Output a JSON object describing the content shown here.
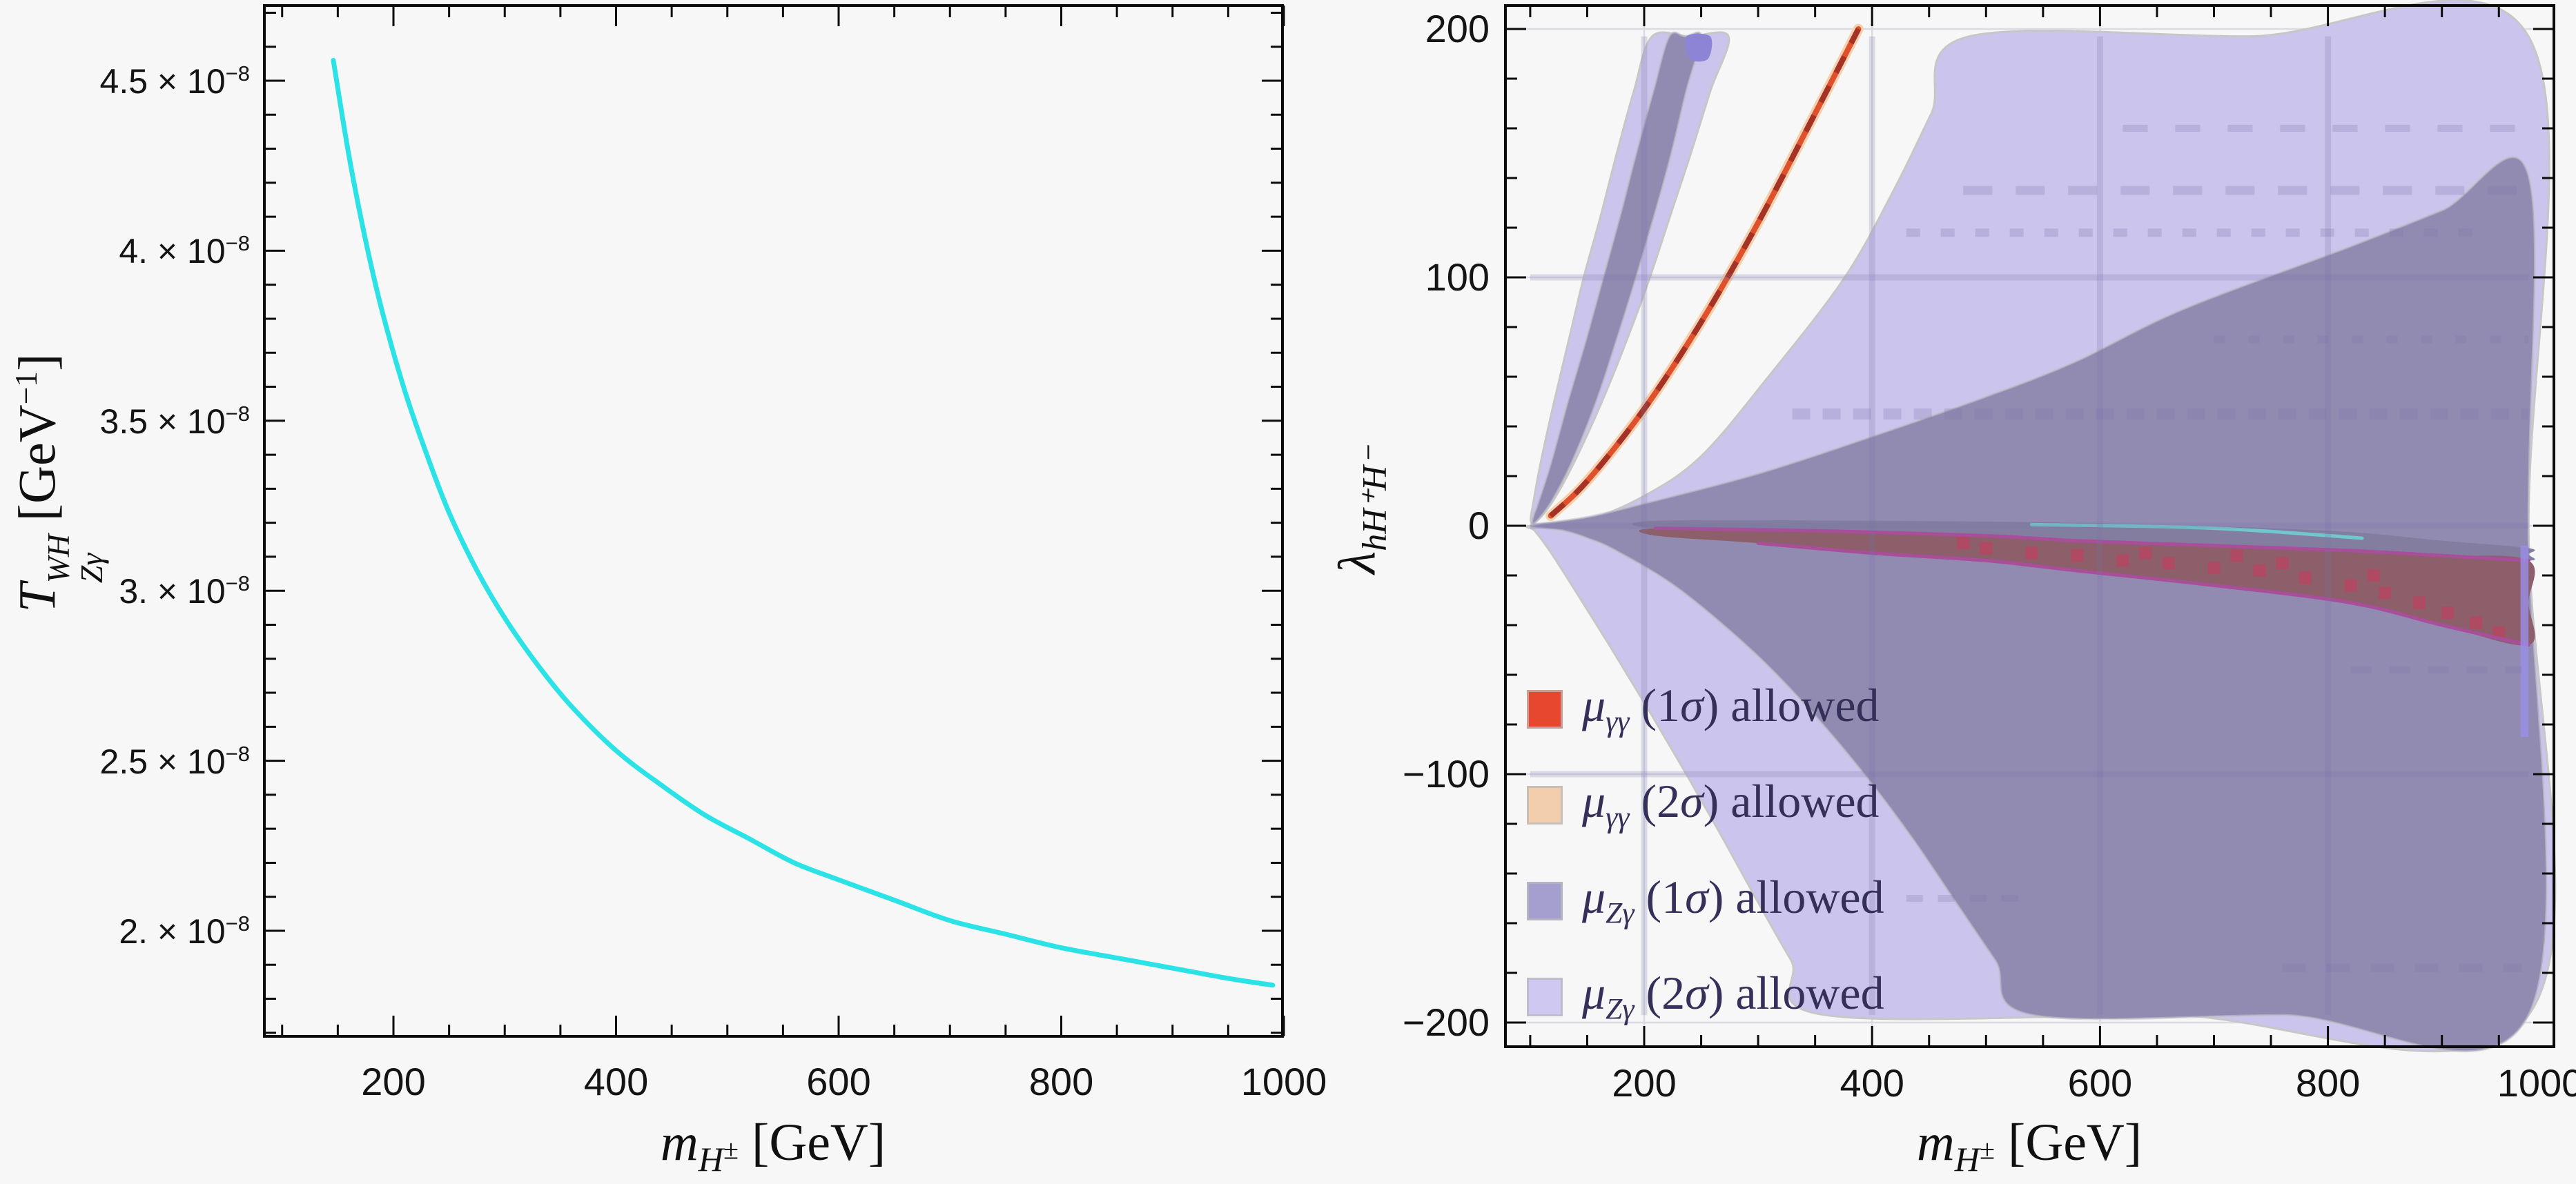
{
  "figure": {
    "background": "#f7f7f8",
    "frame_color": "#0b0b0b",
    "tick_text_color": "#141414",
    "legend_text_color": "#34305a"
  },
  "labels": {
    "x": {
      "base": "m",
      "sub_main": "H",
      "sub_sup": "±",
      "unit": "[GeV]"
    },
    "left_y": {
      "base": "T",
      "sup": "WH",
      "sub": "Zγ",
      "unit_pre": "[GeV",
      "unit_exp": "−1",
      "unit_post": "]"
    },
    "right_y": {
      "base": "λ",
      "sub": "hH⁺H⁻"
    }
  },
  "chart_data": [
    {
      "type": "line",
      "title": "",
      "xlabel": "m_H± [GeV]",
      "ylabel": "T^WH_Zγ [GeV^-1]",
      "x_ticks": [
        200,
        400,
        600,
        800,
        1000
      ],
      "x_tick_labels": [
        "200",
        "400",
        "600",
        "800",
        "1000"
      ],
      "x_minor_step": 50,
      "xlim": [
        84,
        1000
      ],
      "y_units": "1e-8 GeV^-1",
      "ylim": [
        1.69,
        4.72
      ],
      "y_major_ticks": [
        2.0,
        2.5,
        3.0,
        3.5,
        4.0,
        4.5
      ],
      "y_tick_mantissas": [
        "2.",
        "2.5",
        "3.",
        "3.5",
        "4.",
        "4.5"
      ],
      "y_tick_times": " × 10",
      "y_tick_exp": "−8",
      "y_minor_step": 0.1,
      "grid": false,
      "series": [
        {
          "name": "T_Zgamma_WH",
          "color": "#2BE3E7",
          "width": 7,
          "points": [
            [
              146,
              4.56
            ],
            [
              160,
              4.28
            ],
            [
              175,
              4.03
            ],
            [
              190,
              3.82
            ],
            [
              210,
              3.59
            ],
            [
              230,
              3.4
            ],
            [
              250,
              3.23
            ],
            [
              275,
              3.06
            ],
            [
              300,
              2.92
            ],
            [
              330,
              2.78
            ],
            [
              360,
              2.66
            ],
            [
              400,
              2.53
            ],
            [
              440,
              2.43
            ],
            [
              480,
              2.34
            ],
            [
              520,
              2.27
            ],
            [
              560,
              2.2
            ],
            [
              600,
              2.15
            ],
            [
              650,
              2.09
            ],
            [
              700,
              2.03
            ],
            [
              750,
              1.99
            ],
            [
              800,
              1.95
            ],
            [
              850,
              1.92
            ],
            [
              900,
              1.89
            ],
            [
              950,
              1.86
            ],
            [
              990,
              1.84
            ]
          ]
        }
      ]
    },
    {
      "type": "region",
      "title": "",
      "xlabel": "m_H± [GeV]",
      "ylabel": "λ_hH+H-",
      "x_ticks": [
        200,
        400,
        600,
        800,
        1000
      ],
      "x_tick_labels": [
        "200",
        "400",
        "600",
        "800",
        "1000"
      ],
      "x_minor_step": 50,
      "xlim": [
        82,
        1000
      ],
      "ylim": [
        -210,
        209
      ],
      "y_ticks": [
        200,
        100,
        0,
        -100,
        -200
      ],
      "y_tick_labels": [
        "200",
        "100",
        "0",
        "−100",
        "−200"
      ],
      "y_minor_step": 20,
      "grid": true,
      "gridlines": {
        "x": [
          200,
          400,
          600,
          800,
          1000
        ],
        "y": [
          -200,
          -100,
          0,
          100,
          200
        ],
        "under_color": "#dcdbe4",
        "over_color": "rgba(120,114,170,0.22)"
      },
      "legend_position": "lower-left",
      "legend": [
        {
          "swatch": "#E8472F",
          "prefix": "μ",
          "sub": "γγ",
          "mid": " (",
          "n": "1",
          "sigma": "σ",
          "suffix": ") allowed"
        },
        {
          "swatch": "#F2CEAD",
          "prefix": "μ",
          "sub": "γγ",
          "mid": " (",
          "n": "2",
          "sigma": "σ",
          "suffix": ") allowed"
        },
        {
          "swatch": "#A49FCE",
          "prefix": "μ",
          "sub": "Zγ",
          "mid": " (",
          "n": "1",
          "sigma": "σ",
          "suffix": ") allowed"
        },
        {
          "swatch": "#CFC8F0",
          "prefix": "μ",
          "sub": "Zγ",
          "mid": " (",
          "n": "2",
          "sigma": "σ",
          "suffix": ") allowed"
        }
      ],
      "regions": [
        {
          "name": "mu_Zgamma_2sigma_band_steep",
          "color": "#CBC4EC",
          "stroke": "#c7c7c7",
          "ring": [
            [
              100.5,
              2
            ],
            [
              103,
              10
            ],
            [
              109,
              25
            ],
            [
              121,
              50
            ],
            [
              134,
              75
            ],
            [
              147,
              100
            ],
            [
              162,
              125
            ],
            [
              176,
              150
            ],
            [
              191,
              175
            ],
            [
              207,
              197
            ],
            [
              240,
              197
            ],
            [
              274,
              197
            ],
            [
              258,
              175
            ],
            [
              241,
              150
            ],
            [
              223,
              125
            ],
            [
              205,
              100
            ],
            [
              185,
              75
            ],
            [
              163,
              50
            ],
            [
              138,
              25
            ],
            [
              120,
              10
            ],
            [
              106,
              2
            ]
          ]
        },
        {
          "name": "mu_Zgamma_2sigma_fan",
          "color": "#CBC4EC",
          "stroke": "#c7c7c7",
          "ring": [
            [
              100,
              0
            ],
            [
              150,
              2.5
            ],
            [
              200,
              12
            ],
            [
              250,
              28
            ],
            [
              309,
              60
            ],
            [
              376,
              100
            ],
            [
              420,
              136
            ],
            [
              452,
              166
            ],
            [
              485,
              197
            ],
            [
              730,
              197
            ],
            [
              976,
              197
            ],
            [
              976,
              0
            ],
            [
              976,
              -197
            ],
            [
              660,
              -197
            ],
            [
              359,
              -197
            ],
            [
              329,
              -175
            ],
            [
              298,
              -150
            ],
            [
              268,
              -125
            ],
            [
              237,
              -100
            ],
            [
              205,
              -75
            ],
            [
              172,
              -50
            ],
            [
              138,
              -25
            ],
            [
              117,
              -10
            ],
            [
              104,
              -2
            ]
          ]
        },
        {
          "name": "mu_Zgamma_1sigma_band_steep",
          "color": "#918BB2",
          "stroke": "rgba(195,195,200,0.6)",
          "ring": [
            [
              101.7,
              2
            ],
            [
              107.5,
              10
            ],
            [
              118,
              25
            ],
            [
              133,
              50
            ],
            [
              149,
              75
            ],
            [
              164,
              100
            ],
            [
              179,
              125
            ],
            [
              193,
              150
            ],
            [
              208,
              175
            ],
            [
              222,
              197
            ],
            [
              236,
              197
            ],
            [
              250,
              197
            ],
            [
              237,
              175
            ],
            [
              224,
              150
            ],
            [
              209,
              125
            ],
            [
              193,
              100
            ],
            [
              176,
              75
            ],
            [
              158,
              50
            ],
            [
              136,
              25
            ],
            [
              119,
              10
            ],
            [
              106,
              2
            ]
          ]
        },
        {
          "name": "mu_Zgamma_1sigma_fan",
          "color": "#918BB2",
          "stroke": "rgba(195,195,200,0.6)",
          "ring": [
            [
              100,
              0
            ],
            [
              150,
              3.5
            ],
            [
              200,
              9
            ],
            [
              300,
              21
            ],
            [
              400,
              36
            ],
            [
              500,
              52
            ],
            [
              578,
              66
            ],
            [
              672,
              87
            ],
            [
              817,
              112
            ],
            [
              900,
              127
            ],
            [
              976,
              141
            ],
            [
              976,
              0
            ],
            [
              976,
              -197
            ],
            [
              760,
              -197
            ],
            [
              541,
              -197
            ],
            [
              508,
              -175
            ],
            [
              471,
              -150
            ],
            [
              434,
              -125
            ],
            [
              393,
              -100
            ],
            [
              347,
              -75
            ],
            [
              294,
              -50
            ],
            [
              229,
              -25
            ],
            [
              175,
              -10
            ],
            [
              150,
              -5
            ],
            [
              129,
              -2
            ]
          ]
        },
        {
          "name": "overlap_dark_strip",
          "color": "#837E9F",
          "stroke": "none",
          "ring": [
            [
              210,
              2
            ],
            [
              400,
              2
            ],
            [
              600,
              1
            ],
            [
              800,
              -2
            ],
            [
              900,
              -6
            ],
            [
              976,
              -9
            ],
            [
              976,
              -11.5
            ],
            [
              976,
              -14
            ],
            [
              900,
              -12
            ],
            [
              820,
              -10
            ],
            [
              700,
              -8
            ],
            [
              578,
              -6
            ],
            [
              500,
              -4
            ],
            [
              350,
              -2
            ],
            [
              210,
              -1
            ]
          ]
        },
        {
          "name": "mu_gammagamma_allowed_negative_band",
          "color": "#8C5F6B",
          "stroke": "none",
          "ring": [
            [
              210,
              -1
            ],
            [
              350,
              -2
            ],
            [
              500,
              -4
            ],
            [
              578,
              -6
            ],
            [
              700,
              -8
            ],
            [
              820,
              -10
            ],
            [
              900,
              -12
            ],
            [
              976,
              -14
            ],
            [
              976,
              -31
            ],
            [
              976,
              -48
            ],
            [
              900,
              -40
            ],
            [
              820,
              -31
            ],
            [
              700,
              -24
            ],
            [
              578,
              -18
            ],
            [
              500,
              -14
            ],
            [
              400,
              -11
            ],
            [
              300,
              -7
            ],
            [
              210,
              -4
            ]
          ]
        }
      ],
      "overlay_lines": [
        {
          "name": "magenta-edge-top",
          "color": "#A94E9B",
          "width": 5,
          "points": [
            [
              210,
              -1
            ],
            [
              350,
              -2
            ],
            [
              500,
              -4
            ],
            [
              578,
              -6
            ],
            [
              700,
              -8
            ],
            [
              820,
              -10
            ],
            [
              900,
              -12
            ],
            [
              976,
              -14
            ]
          ]
        },
        {
          "name": "magenta-edge-bottom",
          "color": "#A94E9B",
          "width": 5,
          "points": [
            [
              300,
              -7
            ],
            [
              400,
              -11
            ],
            [
              500,
              -14
            ],
            [
              578,
              -18
            ],
            [
              700,
              -24
            ],
            [
              820,
              -31
            ],
            [
              900,
              -40
            ],
            [
              976,
              -48
            ]
          ]
        },
        {
          "name": "teal-line-vertex",
          "color": "#72C7CE",
          "width": 6,
          "points": [
            [
              168,
              3
            ],
            [
              262,
              3
            ]
          ]
        },
        {
          "name": "teal-line-mid",
          "color": "#72C7CE",
          "width": 5,
          "points": [
            [
              540,
              0.5
            ],
            [
              700,
              -1
            ],
            [
              830,
              -5
            ]
          ]
        }
      ],
      "gamma_band_positive": {
        "name": "mu_gammagamma_allowed_positive_branch",
        "peach": "#F4D2B0",
        "red": "#E0502C",
        "dash": "#A53226",
        "center": [
          [
            118,
            4
          ],
          [
            150,
            18
          ],
          [
            200,
            47
          ],
          [
            250,
            82
          ],
          [
            300,
            122
          ],
          [
            350,
            166
          ],
          [
            388,
            200
          ]
        ]
      },
      "red_dots": {
        "color": "#B04A62",
        "size": 18,
        "points": [
          [
            480,
            -7
          ],
          [
            500,
            -9
          ],
          [
            540,
            -11
          ],
          [
            580,
            -12
          ],
          [
            620,
            -14
          ],
          [
            640,
            -11
          ],
          [
            660,
            -15
          ],
          [
            700,
            -17
          ],
          [
            720,
            -12
          ],
          [
            740,
            -18
          ],
          [
            760,
            -15
          ],
          [
            780,
            -21
          ],
          [
            820,
            -24
          ],
          [
            840,
            -20
          ],
          [
            850,
            -27
          ],
          [
            880,
            -31
          ],
          [
            905,
            -35
          ],
          [
            930,
            -39
          ],
          [
            950,
            -43
          ]
        ]
      },
      "edge_sliver": {
        "color": "#9A8FE8",
        "m": [
          969,
          976
        ],
        "lambda": [
          -8,
          -85
        ]
      },
      "indigo_patch": {
        "color": "#8D84D6",
        "ring": [
          [
            237,
            197
          ],
          [
            258,
            197
          ],
          [
            256,
            188
          ],
          [
            240,
            188
          ]
        ]
      },
      "texture_dashes": [
        {
          "lambda": 135,
          "m1": 480,
          "m2": 976,
          "width": 13,
          "dash": "42 34"
        },
        {
          "lambda": 118,
          "m1": 430,
          "m2": 940,
          "width": 12,
          "dash": "20 30"
        },
        {
          "lambda": 45,
          "m1": 330,
          "m2": 976,
          "width": 16,
          "dash": "26 18"
        },
        {
          "lambda": 160,
          "m1": 620,
          "m2": 976,
          "width": 10,
          "dash": "36 40"
        },
        {
          "lambda": 75,
          "m1": 700,
          "m2": 976,
          "width": 11,
          "dash": "16 34"
        },
        {
          "lambda": -58,
          "m1": 820,
          "m2": 970,
          "width": 10,
          "dash": "30 26"
        },
        {
          "lambda": -150,
          "m1": 430,
          "m2": 530,
          "width": 10,
          "dash": "24 22"
        },
        {
          "lambda": -178,
          "m1": 760,
          "m2": 970,
          "width": 12,
          "dash": "34 30"
        }
      ]
    }
  ]
}
